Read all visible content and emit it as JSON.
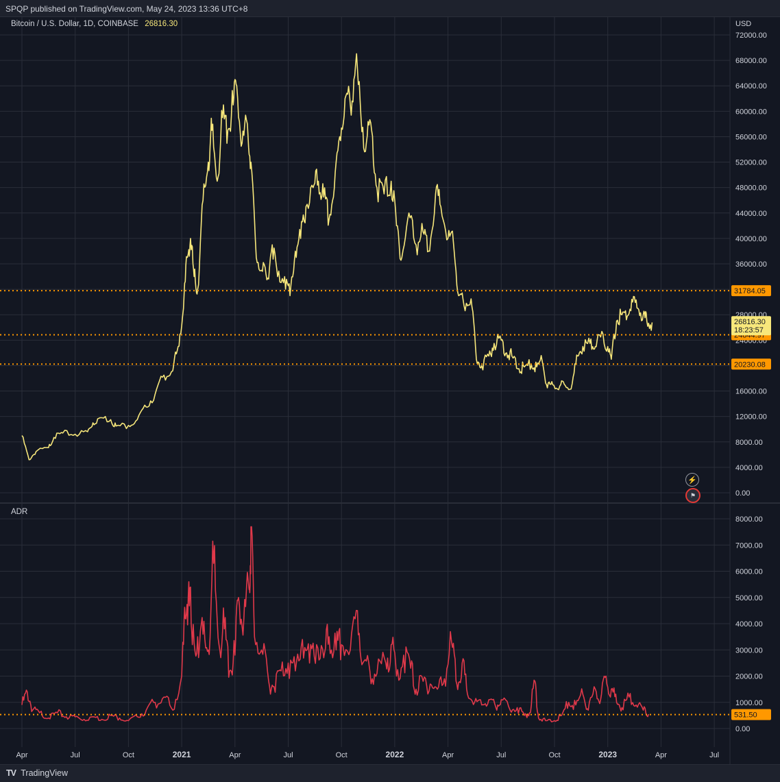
{
  "header": {
    "published": "SPQP published on TradingView.com, May 24, 2023 13:36 UTC+8"
  },
  "legend": {
    "symbol": "Bitcoin / U.S. Dollar, 1D, COINBASE",
    "last": "26816.30"
  },
  "currency": "USD",
  "sub_pane_label": "ADR",
  "footer": {
    "brand": "TradingView",
    "logo": "TV-logo-icon"
  },
  "colors": {
    "background": "#131722",
    "price_line": "#f7e77b",
    "adr_line": "#e0394a",
    "level": "#ff9800",
    "grid": "#2a2e39"
  },
  "chart_data": [
    {
      "type": "line",
      "name": "price-pane",
      "ylim": [
        0,
        74000
      ],
      "y_ticks": [
        "0.00",
        "4000.00",
        "8000.00",
        "12000.00",
        "16000.00",
        "20000.00",
        "24000.00",
        "28000.00",
        "32000.00",
        "36000.00",
        "40000.00",
        "44000.00",
        "48000.00",
        "52000.00",
        "56000.00",
        "60000.00",
        "64000.00",
        "68000.00",
        "72000.00"
      ],
      "x_ticks": [
        "Apr",
        "Jul",
        "Oct",
        "2021",
        "Apr",
        "Jul",
        "Oct",
        "2022",
        "Apr",
        "Jul",
        "Oct",
        "2023",
        "Apr",
        "Jul"
      ],
      "series": [
        {
          "name": "",
          "values": [
            [
              0,
              9000
            ],
            [
              0.4,
              5200
            ],
            [
              0.8,
              6500
            ],
            [
              1.5,
              7100
            ],
            [
              1.8,
              8700
            ],
            [
              2.3,
              9400
            ],
            [
              3,
              9200
            ],
            [
              3.7,
              9600
            ],
            [
              4,
              11000
            ],
            [
              4.4,
              11800
            ],
            [
              5,
              11500
            ],
            [
              5.3,
              10500
            ],
            [
              6,
              10600
            ],
            [
              6.5,
              11500
            ],
            [
              7,
              13500
            ],
            [
              7.5,
              15500
            ],
            [
              8,
              18500
            ],
            [
              8.5,
              19200
            ],
            [
              8.8,
              23000
            ],
            [
              9.1,
              29000
            ],
            [
              9.3,
              37000
            ],
            [
              9.5,
              40000
            ],
            [
              9.7,
              34000
            ],
            [
              9.9,
              32000
            ],
            [
              10.2,
              46000
            ],
            [
              10.5,
              52000
            ],
            [
              10.7,
              57000
            ],
            [
              11,
              49000
            ],
            [
              11.3,
              59000
            ],
            [
              11.6,
              57000
            ],
            [
              11.9,
              61000
            ],
            [
              12.1,
              64000
            ],
            [
              12.4,
              55000
            ],
            [
              12.7,
              58000
            ],
            [
              12.9,
              52000
            ],
            [
              13.2,
              37000
            ],
            [
              13.5,
              35000
            ],
            [
              13.8,
              33500
            ],
            [
              14.1,
              39000
            ],
            [
              14.4,
              34000
            ],
            [
              14.8,
              34000
            ],
            [
              15.1,
              31000
            ],
            [
              15.4,
              38000
            ],
            [
              15.7,
              40000
            ],
            [
              16,
              45000
            ],
            [
              16.4,
              48000
            ],
            [
              16.7,
              49000
            ],
            [
              17,
              46500
            ],
            [
              17.3,
              43000
            ],
            [
              17.6,
              48000
            ],
            [
              17.9,
              56000
            ],
            [
              18.2,
              62000
            ],
            [
              18.5,
              61000
            ],
            [
              18.8,
              67500
            ],
            [
              19.1,
              59000
            ],
            [
              19.4,
              55000
            ],
            [
              19.7,
              57000
            ],
            [
              20,
              48000
            ],
            [
              20.4,
              47000
            ],
            [
              20.8,
              49000
            ],
            [
              21.1,
              42000
            ],
            [
              21.4,
              37000
            ],
            [
              21.8,
              44000
            ],
            [
              22.2,
              39000
            ],
            [
              22.6,
              41000
            ],
            [
              22.9,
              38000
            ],
            [
              23.3,
              47000
            ],
            [
              23.6,
              45000
            ],
            [
              24,
              40000
            ],
            [
              24.3,
              39500
            ],
            [
              24.6,
              31000
            ],
            [
              24.9,
              29500
            ],
            [
              25.3,
              30500
            ],
            [
              25.6,
              21000
            ],
            [
              25.9,
              20000
            ],
            [
              26.3,
              21500
            ],
            [
              26.6,
              23500
            ],
            [
              27,
              24000
            ],
            [
              27.3,
              22000
            ],
            [
              27.6,
              21500
            ],
            [
              28,
              19500
            ],
            [
              28.3,
              19800
            ],
            [
              28.7,
              20100
            ],
            [
              29,
              19800
            ],
            [
              29.3,
              20800
            ],
            [
              29.6,
              16500
            ],
            [
              29.9,
              17000
            ],
            [
              30.3,
              16800
            ],
            [
              30.6,
              16900
            ],
            [
              31,
              17200
            ],
            [
              31.3,
              21500
            ],
            [
              31.6,
              23000
            ],
            [
              32,
              23500
            ],
            [
              32.3,
              23000
            ],
            [
              32.6,
              24500
            ],
            [
              33,
              23000
            ],
            [
              33.2,
              21000
            ],
            [
              33.5,
              27000
            ],
            [
              33.8,
              28000
            ],
            [
              34.1,
              27800
            ],
            [
              34.4,
              30000
            ],
            [
              34.7,
              29000
            ],
            [
              35,
              28000
            ],
            [
              35.2,
              27000
            ],
            [
              35.5,
              26800
            ]
          ]
        }
      ]
    },
    {
      "type": "line",
      "name": "ADR",
      "ylim": [
        -500,
        8500
      ],
      "y_ticks": [
        "0.00",
        "1000.00",
        "2000.00",
        "3000.00",
        "4000.00",
        "5000.00",
        "6000.00",
        "7000.00",
        "8000.00"
      ],
      "series": [
        {
          "name": "ADR",
          "values": [
            [
              0,
              900
            ],
            [
              0.3,
              1400
            ],
            [
              0.6,
              700
            ],
            [
              1,
              600
            ],
            [
              1.5,
              400
            ],
            [
              2,
              600
            ],
            [
              2.5,
              450
            ],
            [
              3,
              450
            ],
            [
              3.5,
              350
            ],
            [
              4,
              450
            ],
            [
              4.5,
              350
            ],
            [
              5,
              500
            ],
            [
              5.5,
              400
            ],
            [
              6,
              300
            ],
            [
              6.5,
              450
            ],
            [
              7,
              700
            ],
            [
              7.5,
              1000
            ],
            [
              8,
              1200
            ],
            [
              8.5,
              700
            ],
            [
              9,
              2000
            ],
            [
              9.2,
              4200
            ],
            [
              9.4,
              5600
            ],
            [
              9.6,
              3200
            ],
            [
              9.9,
              3500
            ],
            [
              10.2,
              3600
            ],
            [
              10.5,
              3000
            ],
            [
              10.8,
              6300
            ],
            [
              11.1,
              3200
            ],
            [
              11.4,
              3800
            ],
            [
              11.7,
              2200
            ],
            [
              12,
              2800
            ],
            [
              12.2,
              5000
            ],
            [
              12.5,
              4200
            ],
            [
              12.8,
              5300
            ],
            [
              12.9,
              7700
            ],
            [
              13.1,
              3500
            ],
            [
              13.5,
              3000
            ],
            [
              13.9,
              1800
            ],
            [
              14.2,
              1600
            ],
            [
              14.6,
              2200
            ],
            [
              15,
              2500
            ],
            [
              15.4,
              2200
            ],
            [
              15.8,
              3400
            ],
            [
              16.2,
              2500
            ],
            [
              16.6,
              3200
            ],
            [
              17,
              2700
            ],
            [
              17.3,
              3500
            ],
            [
              17.7,
              3000
            ],
            [
              18,
              3200
            ],
            [
              18.5,
              3000
            ],
            [
              18.9,
              4500
            ],
            [
              19.2,
              2500
            ],
            [
              19.6,
              2200
            ],
            [
              20,
              2100
            ],
            [
              20.5,
              2500
            ],
            [
              20.8,
              3200
            ],
            [
              21.1,
              2000
            ],
            [
              21.5,
              2800
            ],
            [
              21.9,
              2300
            ],
            [
              22.2,
              1500
            ],
            [
              22.6,
              1800
            ],
            [
              23,
              1700
            ],
            [
              23.4,
              1500
            ],
            [
              23.8,
              1900
            ],
            [
              24.2,
              3300
            ],
            [
              24.5,
              1700
            ],
            [
              24.8,
              2500
            ],
            [
              25.1,
              1300
            ],
            [
              25.5,
              1000
            ],
            [
              25.9,
              900
            ],
            [
              26.3,
              1100
            ],
            [
              26.7,
              800
            ],
            [
              27,
              1100
            ],
            [
              27.5,
              700
            ],
            [
              27.9,
              800
            ],
            [
              28.3,
              500
            ],
            [
              28.6,
              600
            ],
            [
              28.9,
              1800
            ],
            [
              29.1,
              400
            ],
            [
              29.5,
              300
            ],
            [
              30,
              300
            ],
            [
              30.4,
              500
            ],
            [
              30.8,
              1000
            ],
            [
              31.2,
              900
            ],
            [
              31.6,
              1300
            ],
            [
              31.9,
              700
            ],
            [
              32.3,
              1500
            ],
            [
              32.6,
              1100
            ],
            [
              32.9,
              2000
            ],
            [
              33.2,
              1500
            ],
            [
              33.5,
              1000
            ],
            [
              33.8,
              800
            ],
            [
              34.2,
              1200
            ],
            [
              34.6,
              900
            ],
            [
              35,
              700
            ],
            [
              35.3,
              550
            ]
          ]
        }
      ]
    }
  ],
  "levels": [
    {
      "value": 31784.05,
      "label": "31784.05"
    },
    {
      "value": 24844.97,
      "label": "24844.97"
    },
    {
      "value": 20230.08,
      "label": "20230.08"
    }
  ],
  "last_price_box": {
    "price": "26816.30",
    "countdown": "18:23:57"
  },
  "adr_level": {
    "value": 531.5,
    "label": "531.50"
  }
}
